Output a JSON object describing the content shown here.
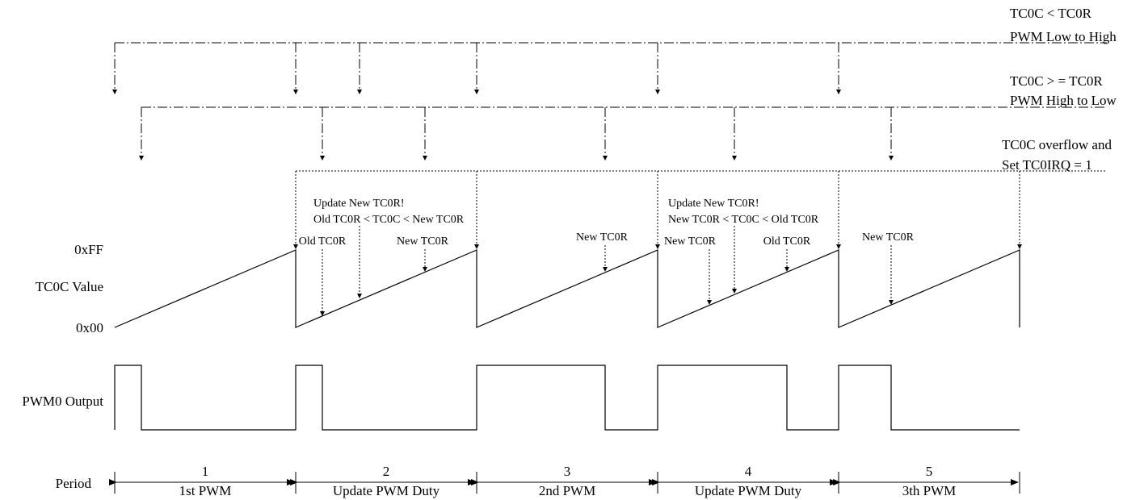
{
  "legend": {
    "low_to_high": [
      "TC0C < TC0R",
      "PWM Low to High"
    ],
    "high_to_low": [
      "TC0C > = TC0R",
      "PWM High to Low"
    ],
    "overflow": [
      "TC0C overflow and",
      "Set TC0IRQ = 1"
    ]
  },
  "rows": {
    "max_value": "0xFF",
    "counter": "TC0C Value",
    "min_value": "0x00",
    "pwm_output": "PWM0 Output",
    "period": "Period"
  },
  "notes": {
    "p2": [
      "Update New TC0R!",
      "Old TC0R < TC0C < New TC0R"
    ],
    "p4": [
      "Update New TC0R!",
      "New TC0R < TC0C < Old TC0R"
    ]
  },
  "markers": [
    {
      "text": "Old TC0R"
    },
    {
      "text": "New TC0R"
    },
    {
      "text": "New TC0R"
    },
    {
      "text": "New TC0R"
    },
    {
      "text": "Old TC0R"
    },
    {
      "text": "New TC0R"
    }
  ],
  "periods": [
    {
      "number": "1",
      "name": "1st PWM"
    },
    {
      "number": "2",
      "name": "Update PWM Duty"
    },
    {
      "number": "3",
      "name": "2nd PWM"
    },
    {
      "number": "4",
      "name": "Update PWM Duty"
    },
    {
      "number": "5",
      "name": "3th PWM"
    }
  ]
}
